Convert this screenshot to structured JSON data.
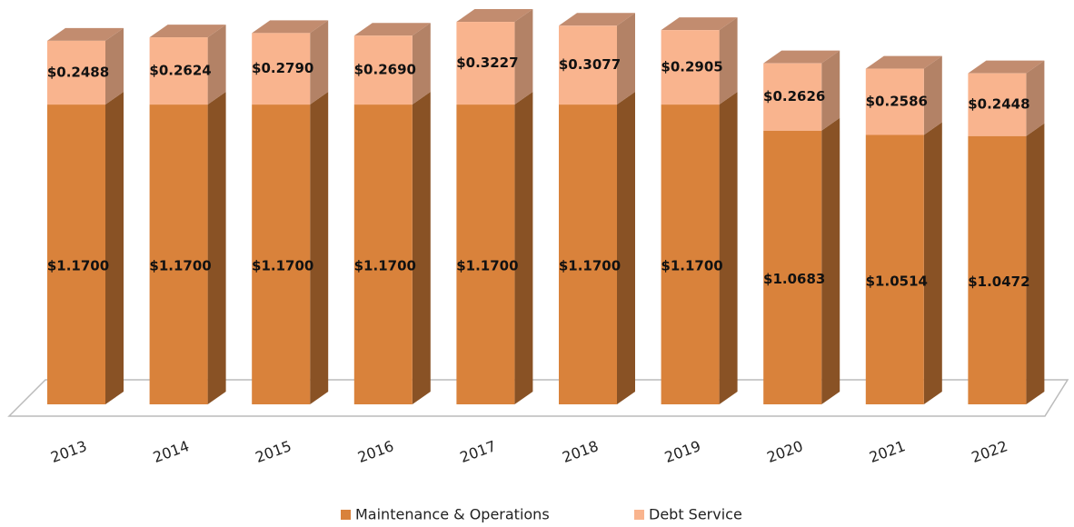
{
  "chart_data": {
    "type": "bar3d-stacked",
    "categories": [
      "2013",
      "2014",
      "2015",
      "2016",
      "2017",
      "2018",
      "2019",
      "2020",
      "2021",
      "2022"
    ],
    "series": [
      {
        "name": "Maintenance & Operations",
        "color": "#d9823b",
        "values": [
          1.17,
          1.17,
          1.17,
          1.17,
          1.17,
          1.17,
          1.17,
          1.0683,
          1.0514,
          1.0472
        ],
        "value_labels": [
          "$1.1700",
          "$1.1700",
          "$1.1700",
          "$1.1700",
          "$1.1700",
          "$1.1700",
          "$1.1700",
          "$1.0683",
          "$1.0514",
          "$1.0472"
        ]
      },
      {
        "name": "Debt Service",
        "color": "#f9b48e",
        "values": [
          0.2488,
          0.2624,
          0.279,
          0.269,
          0.3227,
          0.3077,
          0.2905,
          0.2626,
          0.2586,
          0.2448
        ],
        "value_labels": [
          "$0.2488",
          "$0.2624",
          "$0.2790",
          "$0.2690",
          "$0.3227",
          "$0.3077",
          "$0.2905",
          "$0.2626",
          "$0.2586",
          "$0.2448"
        ]
      }
    ],
    "ylim": [
      0,
      1.5
    ],
    "legend": "bottom"
  }
}
